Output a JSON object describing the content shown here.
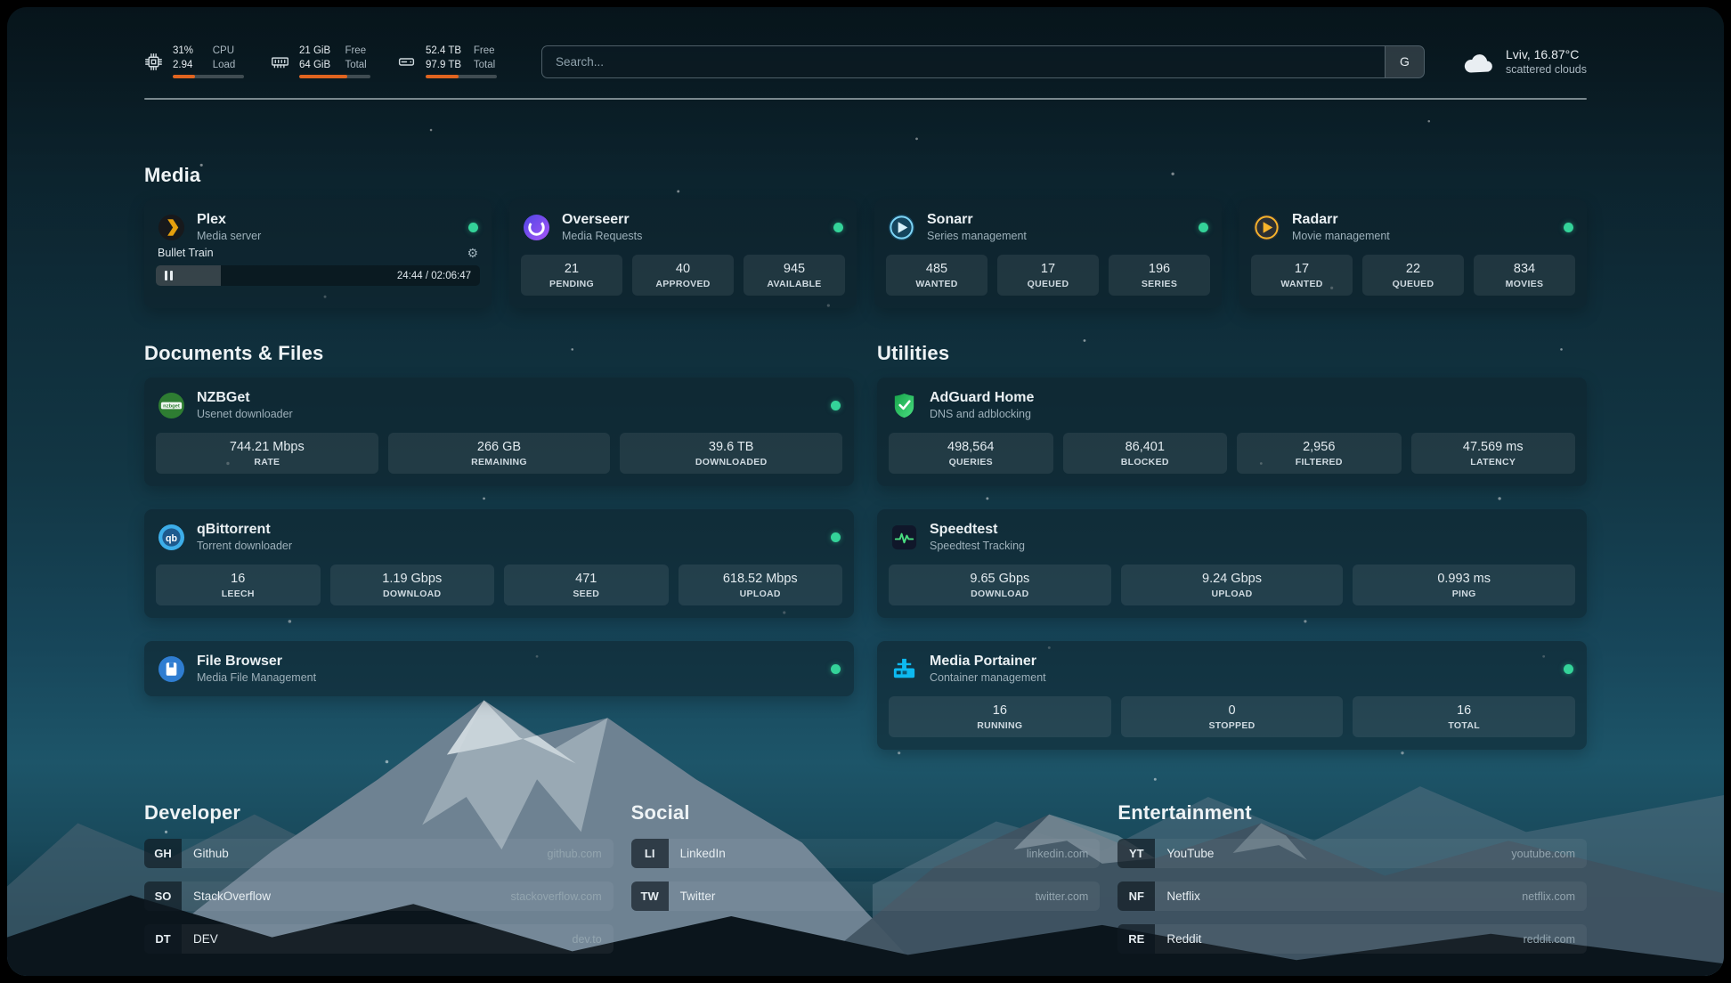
{
  "colors": {
    "accent-green": "#34d399",
    "bar-orange": "#e0641f",
    "plex-amber": "#e5a00d",
    "radarr-amber": "#f7b32b"
  },
  "topbar": {
    "cpu": {
      "icon": "cpu-icon",
      "value1": "31%",
      "label1": "CPU",
      "value2": "2.94",
      "label2": "Load",
      "percent": 31
    },
    "memory": {
      "icon": "memory-icon",
      "value1": "21 GiB",
      "label1": "Free",
      "value2": "64 GiB",
      "label2": "Total",
      "percent": 67
    },
    "disk": {
      "icon": "disk-icon",
      "value1": "52.4 TB",
      "label1": "Free",
      "value2": "97.9 TB",
      "label2": "Total",
      "percent": 46
    },
    "search": {
      "placeholder": "Search...",
      "provider": "G"
    },
    "weather": {
      "icon": "cloud-icon",
      "location": "Lviv, 16.87°C",
      "condition": "scattered clouds"
    }
  },
  "media": {
    "title": "Media",
    "plex": {
      "icon": "plex-icon",
      "name": "Plex",
      "description": "Media server",
      "status": "online",
      "now_playing": {
        "title": "Bullet Train",
        "time": "24:44 / 02:06:47",
        "progress": 20
      }
    },
    "overseerr": {
      "icon": "overseerr-icon",
      "name": "Overseerr",
      "description": "Media Requests",
      "status": "online",
      "stats": [
        {
          "value": "21",
          "label": "PENDING"
        },
        {
          "value": "40",
          "label": "APPROVED"
        },
        {
          "value": "945",
          "label": "AVAILABLE"
        }
      ]
    },
    "sonarr": {
      "icon": "sonarr-icon",
      "name": "Sonarr",
      "description": "Series management",
      "status": "online",
      "stats": [
        {
          "value": "485",
          "label": "WANTED"
        },
        {
          "value": "17",
          "label": "QUEUED"
        },
        {
          "value": "196",
          "label": "SERIES"
        }
      ]
    },
    "radarr": {
      "icon": "radarr-icon",
      "name": "Radarr",
      "description": "Movie management",
      "status": "online",
      "stats": [
        {
          "value": "17",
          "label": "WANTED"
        },
        {
          "value": "22",
          "label": "QUEUED"
        },
        {
          "value": "834",
          "label": "MOVIES"
        }
      ]
    }
  },
  "documents": {
    "title": "Documents & Files",
    "nzbget": {
      "icon": "nzbget-icon",
      "name": "NZBGet",
      "description": "Usenet downloader",
      "status": "online",
      "stats": [
        {
          "value": "744.21 Mbps",
          "label": "RATE"
        },
        {
          "value": "266 GB",
          "label": "REMAINING"
        },
        {
          "value": "39.6 TB",
          "label": "DOWNLOADED"
        }
      ]
    },
    "qbittorrent": {
      "icon": "qbittorrent-icon",
      "name": "qBittorrent",
      "description": "Torrent downloader",
      "status": "online",
      "stats": [
        {
          "value": "16",
          "label": "LEECH"
        },
        {
          "value": "1.19 Gbps",
          "label": "DOWNLOAD"
        },
        {
          "value": "471",
          "label": "SEED"
        },
        {
          "value": "618.52 Mbps",
          "label": "UPLOAD"
        }
      ]
    },
    "filebrowser": {
      "icon": "filebrowser-icon",
      "name": "File Browser",
      "description": "Media File Management",
      "status": "online"
    }
  },
  "utilities": {
    "title": "Utilities",
    "adguard": {
      "icon": "adguard-icon",
      "name": "AdGuard Home",
      "description": "DNS and adblocking",
      "stats": [
        {
          "value": "498,564",
          "label": "QUERIES"
        },
        {
          "value": "86,401",
          "label": "BLOCKED"
        },
        {
          "value": "2,956",
          "label": "FILTERED"
        },
        {
          "value": "47.569 ms",
          "label": "LATENCY"
        }
      ]
    },
    "speedtest": {
      "icon": "speedtest-icon",
      "name": "Speedtest",
      "description": "Speedtest Tracking",
      "stats": [
        {
          "value": "9.65 Gbps",
          "label": "DOWNLOAD"
        },
        {
          "value": "9.24 Gbps",
          "label": "UPLOAD"
        },
        {
          "value": "0.993 ms",
          "label": "PING"
        }
      ]
    },
    "portainer": {
      "icon": "portainer-icon",
      "name": "Media Portainer",
      "description": "Container management",
      "status": "online",
      "stats": [
        {
          "value": "16",
          "label": "RUNNING"
        },
        {
          "value": "0",
          "label": "STOPPED"
        },
        {
          "value": "16",
          "label": "TOTAL"
        }
      ]
    }
  },
  "bookmarks": {
    "developer": {
      "title": "Developer",
      "items": [
        {
          "abbr": "GH",
          "name": "Github",
          "domain": "github.com"
        },
        {
          "abbr": "SO",
          "name": "StackOverflow",
          "domain": "stackoverflow.com"
        },
        {
          "abbr": "DT",
          "name": "DEV",
          "domain": "dev.to"
        }
      ]
    },
    "social": {
      "title": "Social",
      "items": [
        {
          "abbr": "LI",
          "name": "LinkedIn",
          "domain": "linkedin.com"
        },
        {
          "abbr": "TW",
          "name": "Twitter",
          "domain": "twitter.com"
        }
      ]
    },
    "entertainment": {
      "title": "Entertainment",
      "items": [
        {
          "abbr": "YT",
          "name": "YouTube",
          "domain": "youtube.com"
        },
        {
          "abbr": "NF",
          "name": "Netflix",
          "domain": "netflix.com"
        },
        {
          "abbr": "RE",
          "name": "Reddit",
          "domain": "reddit.com"
        }
      ]
    }
  }
}
